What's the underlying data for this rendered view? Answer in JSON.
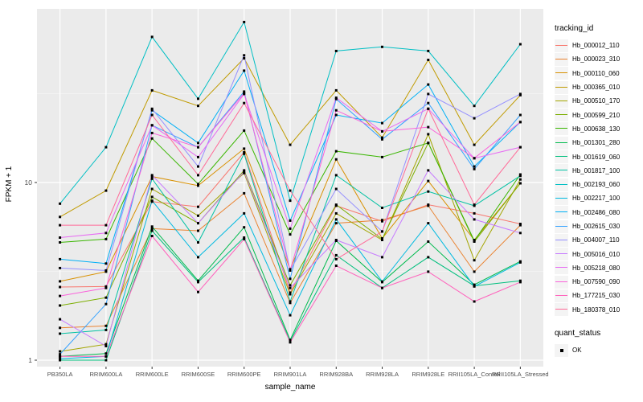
{
  "figure": {
    "xlabel": "sample_name",
    "ylabel": "FPKM + 1",
    "legend_title": "tracking_id",
    "quant_legend_title": "quant_status",
    "quant_ok_label": "OK"
  },
  "theme": {
    "panel_bg": "#EBEBEB",
    "grid_major": "#FFFFFF",
    "grid_minor": "#F5F5F5",
    "tick_color": "#333333",
    "tick_label_color": "#4D4D4D",
    "point_color": "#000000",
    "legend_key_bg": "#F4F4F4"
  },
  "chart_data": {
    "type": "line",
    "title": "",
    "xlabel": "sample_name",
    "ylabel": "FPKM + 1",
    "yscale": "log10",
    "yticks": [
      1,
      10
    ],
    "ylim": [
      0.92,
      95
    ],
    "grid": "major white on gray panel, minor at log midpoints",
    "legend_position": "right",
    "marker": "small black square (quant_status = OK) on every point",
    "categories": [
      "PB350LA",
      "RRIM600LA",
      "RRIM600LE",
      "RRIM600SE",
      "RRIM600PE",
      "RRIM901LA",
      "RRIM928BA",
      "RRIM928LA",
      "RRIM928LE",
      "RRII105LA_Control",
      "RRII105LA_Stressed"
    ],
    "series": [
      {
        "name": "Hb_000012_110",
        "color": "#F8766D",
        "values": [
          2.58,
          2.6,
          7.8,
          7.3,
          14.8,
          2.4,
          7.4,
          6.05,
          7.5,
          6.7,
          5.85
        ]
      },
      {
        "name": "Hb_000023_310",
        "color": "#EA8331",
        "values": [
          1.52,
          1.56,
          5.5,
          5.35,
          8.7,
          2.1,
          5.9,
          6.15,
          7.4,
          3.15,
          5.75
        ]
      },
      {
        "name": "Hb_000110_060",
        "color": "#D89000",
        "values": [
          2.78,
          3.15,
          10.8,
          9.6,
          15.5,
          3.25,
          13.5,
          4.85,
          10.2,
          4.75,
          9.9
        ]
      },
      {
        "name": "Hb_000365_010",
        "color": "#C09B00",
        "values": [
          6.4,
          9.0,
          33,
          27,
          50,
          16.3,
          33,
          17.9,
          49,
          16.3,
          31
        ]
      },
      {
        "name": "Hb_000510_170",
        "color": "#A3A500",
        "values": [
          1.12,
          1.23,
          9.2,
          6.5,
          11.3,
          2.35,
          6.7,
          4.75,
          18.7,
          3.65,
          10.4
        ]
      },
      {
        "name": "Hb_000599_210",
        "color": "#7CAE00",
        "values": [
          2.03,
          2.25,
          8.3,
          5.9,
          11.7,
          2.64,
          7.5,
          4.8,
          16.7,
          4.65,
          9.9
        ]
      },
      {
        "name": "Hb_000638_130",
        "color": "#39B600",
        "values": [
          4.6,
          4.8,
          17.7,
          9.8,
          19.6,
          5.1,
          15.0,
          13.9,
          16.7,
          4.7,
          11.1
        ]
      },
      {
        "name": "Hb_001301_280",
        "color": "#00BB4E",
        "values": [
          1.05,
          1.09,
          5.65,
          2.8,
          5.6,
          1.3,
          4.7,
          2.75,
          4.65,
          2.66,
          3.6
        ]
      },
      {
        "name": "Hb_001619_060",
        "color": "#00BF7D",
        "values": [
          1.0,
          1.0,
          5.35,
          2.75,
          4.9,
          1.28,
          3.9,
          2.55,
          3.8,
          2.62,
          2.8
        ]
      },
      {
        "name": "Hb_001817_100",
        "color": "#00C1A3",
        "values": [
          1.41,
          1.48,
          10.5,
          4.6,
          14.5,
          2.14,
          11.0,
          7.2,
          8.9,
          7.4,
          10.9
        ]
      },
      {
        "name": "Hb_002193_060",
        "color": "#00BFC4",
        "values": [
          7.6,
          15.8,
          66,
          29.6,
          80,
          7.9,
          55,
          58,
          55,
          27,
          60
        ]
      },
      {
        "name": "Hb_002217_100",
        "color": "#00BAE0",
        "values": [
          1.02,
          1.05,
          7.9,
          3.8,
          6.7,
          1.79,
          6.2,
          2.77,
          5.9,
          2.6,
          3.55
        ]
      },
      {
        "name": "Hb_002486_080",
        "color": "#00B0F6",
        "values": [
          3.7,
          3.5,
          25.5,
          16.7,
          42.6,
          6.1,
          24,
          21.6,
          35.6,
          12.3,
          21.9
        ]
      },
      {
        "name": "Hb_002615_030",
        "color": "#35A2FF",
        "values": [
          1.08,
          2.07,
          21.0,
          15.8,
          32.5,
          2.87,
          29.5,
          17.5,
          28.0,
          11.9,
          24.0
        ]
      },
      {
        "name": "Hb_004007_110",
        "color": "#9590FF",
        "values": [
          3.3,
          3.2,
          26.0,
          12.3,
          52.0,
          3.2,
          9.2,
          5.3,
          31.5,
          23.0,
          31.5
        ]
      },
      {
        "name": "Hb_005016_010",
        "color": "#C77CFF",
        "values": [
          1.7,
          1.2,
          11.0,
          5.9,
          11.5,
          2.55,
          4.75,
          3.8,
          11.7,
          6.2,
          5.2
        ]
      },
      {
        "name": "Hb_005218_080",
        "color": "#E76BF3",
        "values": [
          4.9,
          5.2,
          21.0,
          13.9,
          31.5,
          5.5,
          30.0,
          19.4,
          26.0,
          13.7,
          15.8
        ]
      },
      {
        "name": "Hb_007590_090",
        "color": "#FA62DB",
        "values": [
          2.3,
          2.55,
          19.0,
          15.8,
          31.8,
          3.2,
          25.5,
          19.4,
          20.5,
          13.7,
          21.9
        ]
      },
      {
        "name": "Hb_177215_030",
        "color": "#FF62BC",
        "values": [
          1.05,
          1.05,
          5.0,
          2.42,
          4.8,
          1.26,
          3.4,
          2.55,
          3.15,
          2.14,
          2.75
        ]
      },
      {
        "name": "Hb_180378_010",
        "color": "#FF6A98",
        "values": [
          5.75,
          5.75,
          24.0,
          11.0,
          28.0,
          9.0,
          3.7,
          5.3,
          26.0,
          7.5,
          15.8
        ]
      }
    ]
  }
}
